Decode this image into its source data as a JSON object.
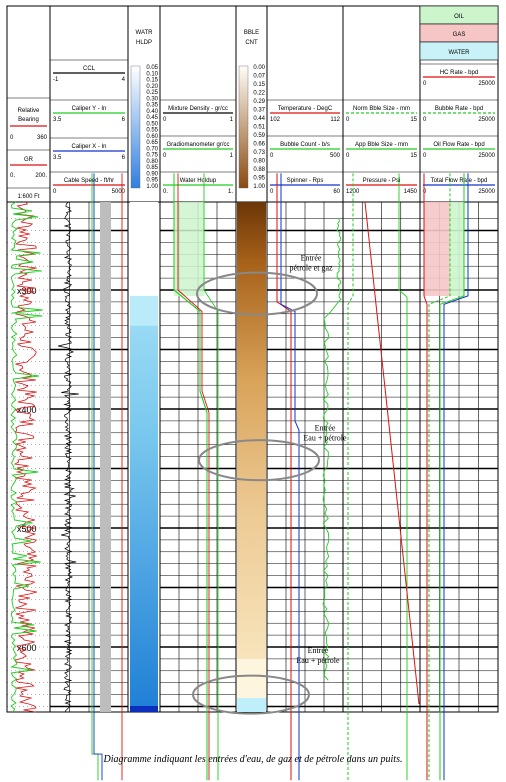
{
  "chart_data": {
    "type": "line",
    "caption": "Diagramme indiquant les entrées d'eau, de gaz et de pétrole dans un puits.",
    "depth_scale": "1:600 Ft",
    "depth_marks": [
      {
        "label": "x300",
        "depth": 300
      },
      {
        "label": "x400",
        "depth": 400
      },
      {
        "label": "x500",
        "depth": 500
      },
      {
        "label": "x600",
        "depth": 600
      }
    ],
    "legend": {
      "oil": "OIL",
      "gas": "GAS",
      "water": "WATER"
    },
    "colors": {
      "oil": "#ccf5cc",
      "gas": "#f6c6c6",
      "water": "#c8f2f7",
      "green": "#22cc22",
      "red": "#dd1111",
      "blue": "#1133cc",
      "black": "#000000"
    },
    "tracks": {
      "t1": {
        "curves": [
          {
            "name": "Relative Bearing",
            "min": "0",
            "max": "360",
            "color": "#dd1111"
          },
          {
            "name": "GR",
            "min": "0.",
            "max": "200.",
            "color": "#dd1111"
          }
        ]
      },
      "t2": {
        "curves": [
          {
            "name": "CCL",
            "min": "-1",
            "max": "4",
            "color": "#000000"
          },
          {
            "name": "Caliper Y - In",
            "min": "3.5",
            "max": "6",
            "color": "#22cc22"
          },
          {
            "name": "Caliper X - In",
            "min": "3.5",
            "max": "6",
            "color": "#1133cc"
          },
          {
            "name": "Cable Speed - ft/hr",
            "min": "0",
            "max": "5000",
            "color": "#dd1111"
          }
        ]
      },
      "t3": {
        "title_lines": [
          "WATR",
          "HLDP"
        ],
        "scale": [
          "0.05",
          "0.10",
          "0.15",
          "0.20",
          "0.25",
          "0.30",
          "0.35",
          "0.40",
          "0.45",
          "0.50",
          "0.55",
          "0.60",
          "0.65",
          "0.70",
          "0.75",
          "0.80",
          "0.85",
          "0.90",
          "0.95",
          "1.00"
        ]
      },
      "t4": {
        "curves": [
          {
            "name": "Mixture Density - gr/cc",
            "min": "0",
            "max": "1",
            "color": "#000000"
          },
          {
            "name": "Gradiomanometer gr/cc",
            "min": "0",
            "max": "1",
            "color": "#22cc22"
          },
          {
            "name": "Water Holdup",
            "min": "0.",
            "max": "1.",
            "color": "#22cc22"
          }
        ]
      },
      "t5": {
        "title_lines": [
          "BBLE",
          "CNT"
        ],
        "scale": [
          "0.00",
          "0.07",
          "0.15",
          "0.22",
          "0.29",
          "0.37",
          "0.44",
          "0.51",
          "0.59",
          "0.66",
          "0.73",
          "0.80",
          "0.88",
          "0.95",
          "1.00"
        ]
      },
      "t6": {
        "curves": [
          {
            "name": "Temperature - DegC",
            "min": "102",
            "max": "112",
            "color": "#dd1111"
          },
          {
            "name": "Bubble Count - b/s",
            "min": "0",
            "max": "500",
            "color": "#22cc22"
          },
          {
            "name": "Spinner - Rps",
            "min": "0",
            "max": "60",
            "color": "#1133cc"
          }
        ]
      },
      "t7": {
        "curves": [
          {
            "name": "Norm Bble Size - mm",
            "min": "0",
            "max": "15",
            "color": "#22cc22"
          },
          {
            "name": "App Bble Size - mm",
            "min": "0",
            "max": "15",
            "color": "#22cc22"
          },
          {
            "name": "Pressure - Psi",
            "min": "1200",
            "max": "1450",
            "color": "#dd1111"
          }
        ]
      },
      "t8": {
        "curves": [
          {
            "name": "HC Rate - bpd",
            "min": "0",
            "max": "25000",
            "color": "#dd1111"
          },
          {
            "name": "Bubble Rate - bpd",
            "min": "0",
            "max": "25000",
            "color": "#22cc22"
          },
          {
            "name": "Oil Flow Rate - bpd",
            "min": "0",
            "max": "25000",
            "color": "#22cc22"
          },
          {
            "name": "Total Flow Rate - bpd",
            "min": "0",
            "max": "25000",
            "color": "#1133cc"
          }
        ]
      }
    },
    "annotations": [
      {
        "lines": [
          "Entrée",
          "pétrole et gaz"
        ],
        "depth": 275
      },
      {
        "lines": [
          "Entrée",
          "Eau + pétrole"
        ],
        "depth": 418
      },
      {
        "lines": [
          "Entrée",
          "Eau + pétrole"
        ],
        "depth": 605
      }
    ]
  }
}
